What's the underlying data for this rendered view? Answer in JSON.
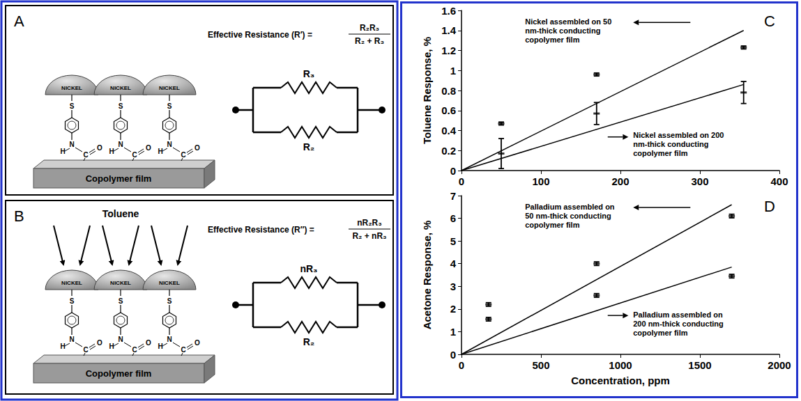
{
  "diagram": {
    "panels": [
      {
        "letter": "A",
        "formula": {
          "label": "Effective Resistance (R′) =",
          "numerator": "R₂R₃",
          "denominator": "R₂ + R₃"
        },
        "resistors": {
          "top": "R₃",
          "bottom": "R₂"
        },
        "particles": [
          "NICKEL",
          "NICKEL",
          "NICKEL"
        ],
        "linker_atoms": {
          "sulfur": "S",
          "nitrogen": "N",
          "hydrogen": "H",
          "carbon": "C",
          "oxygen": "O"
        },
        "substrate": "Copolymer film"
      },
      {
        "letter": "B",
        "stimulus": "Toluene",
        "formula": {
          "label": "Effective Resistance (R″) =",
          "numerator": "nR₂R₃",
          "denominator": "R₂ + nR₃"
        },
        "resistors": {
          "top": "nR₃",
          "bottom": "R₂"
        },
        "particles": [
          "NICKEL",
          "NICKEL",
          "NICKEL"
        ],
        "linker_atoms": {
          "sulfur": "S",
          "nitrogen": "N",
          "hydrogen": "H",
          "carbon": "C",
          "oxygen": "O"
        },
        "substrate": "Copolymer film"
      }
    ]
  },
  "chart_data": [
    {
      "type": "scatter",
      "panel": "C",
      "ylabel": "Toluene Response, %",
      "xlim": [
        0,
        400
      ],
      "xticks": [
        0,
        100,
        200,
        300,
        400
      ],
      "ylim": [
        0,
        1.6
      ],
      "yticks": [
        0,
        0.2,
        0.4,
        0.6,
        0.8,
        1,
        1.2,
        1.4,
        1.6
      ],
      "grid": false,
      "series": [
        {
          "type": "scatter",
          "color": "#000000",
          "marker": "dash",
          "x": [
            50,
            170,
            355
          ],
          "values": [
            0.47,
            0.96,
            1.23
          ],
          "errors": [
            0.015,
            0.015,
            0.015
          ]
        },
        {
          "type": "line",
          "color": "#000000",
          "x": [
            0,
            355
          ],
          "values": [
            0,
            1.4
          ]
        },
        {
          "type": "scatter",
          "color": "#000000",
          "marker": "dash",
          "x": [
            50,
            170,
            355
          ],
          "values": [
            0.17,
            0.57,
            0.78
          ],
          "errors": [
            0.15,
            0.11,
            0.11
          ]
        },
        {
          "type": "line",
          "color": "#000000",
          "x": [
            0,
            355
          ],
          "values": [
            0,
            0.86
          ]
        }
      ],
      "annotations": [
        "Nickel assembled on 50 nm-thick conducting copolymer film",
        "Nickel assembled on 200 nm-thick conducting copolymer film"
      ]
    },
    {
      "type": "scatter",
      "panel": "D",
      "xlabel": "Concentration, ppm",
      "ylabel": "Acetone Response, %",
      "xlim": [
        0,
        2000
      ],
      "xticks": [
        0,
        500,
        1000,
        1500,
        2000
      ],
      "ylim": [
        0,
        7
      ],
      "yticks": [
        0,
        1,
        2,
        3,
        4,
        5,
        6,
        7
      ],
      "grid": false,
      "series": [
        {
          "type": "scatter",
          "color": "#000000",
          "marker": "dash",
          "x": [
            170,
            850,
            1700
          ],
          "values": [
            2.2,
            4,
            6.1
          ],
          "errors": [
            0.08,
            0.08,
            0.08
          ]
        },
        {
          "type": "line",
          "color": "#000000",
          "x": [
            0,
            1700
          ],
          "values": [
            0,
            6.6
          ]
        },
        {
          "type": "scatter",
          "color": "#000000",
          "marker": "dash",
          "x": [
            170,
            850,
            1700
          ],
          "values": [
            1.55,
            2.6,
            3.45
          ],
          "errors": [
            0.08,
            0.08,
            0.08
          ]
        },
        {
          "type": "line",
          "color": "#000000",
          "x": [
            0,
            1700
          ],
          "values": [
            0,
            3.85
          ]
        }
      ],
      "annotations": [
        "Palladium assembled on 50 nm-thick conducting copolymer film",
        "Palladium assembled on 200 nm-thick conducting copolymer film"
      ]
    }
  ]
}
